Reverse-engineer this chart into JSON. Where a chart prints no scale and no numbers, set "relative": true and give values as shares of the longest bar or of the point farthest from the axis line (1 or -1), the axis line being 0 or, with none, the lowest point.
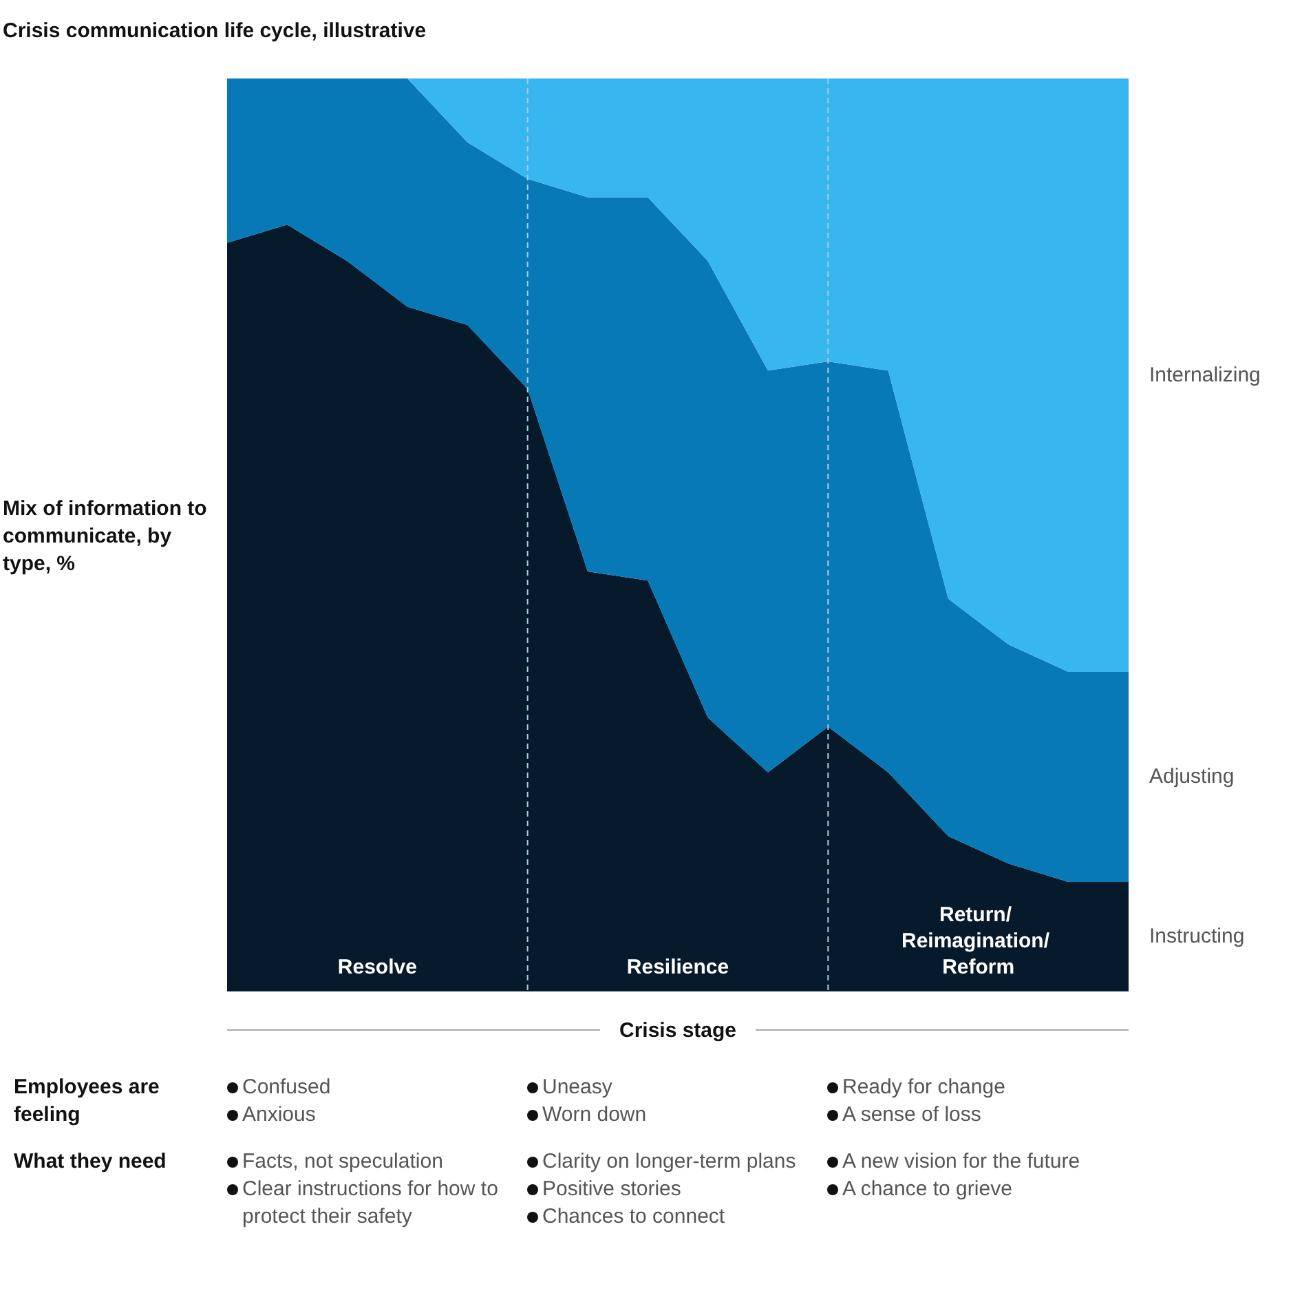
{
  "chart_data": {
    "type": "area",
    "title": "Crisis communication life cycle, illustrative",
    "ylabel": "Mix of information to communicate, by type, %",
    "xlabel": "Crisis stage",
    "relative": true,
    "stacked": true,
    "legend": false,
    "marker": "none",
    "categories": [
      null,
      null,
      null,
      null,
      null,
      null,
      null,
      null,
      null,
      null,
      null,
      null,
      null,
      null,
      null,
      null
    ],
    "series": [
      {
        "name": "Instructing",
        "color": "#061a2b",
        "values": [
          0.82,
          0.84,
          0.8,
          0.75,
          0.73,
          0.66,
          0.46,
          0.45,
          0.3,
          0.24,
          0.29,
          0.24,
          0.17,
          0.14,
          0.12,
          0.12
        ]
      },
      {
        "name": "Adjusting",
        "color": "#0679b6",
        "values": [
          0.18,
          0.16,
          0.2,
          0.25,
          0.2,
          0.23,
          0.41,
          0.42,
          0.5,
          0.44,
          0.4,
          0.44,
          0.26,
          0.24,
          0.23,
          0.23
        ]
      },
      {
        "name": "Internalizing",
        "color": "#38b6ef",
        "values": [
          0,
          0,
          0,
          0,
          0.07,
          0.11,
          0.13,
          0.13,
          0.2,
          0.32,
          0.31,
          0.32,
          0.57,
          0.62,
          0.65,
          0.65
        ]
      }
    ],
    "annotations": [
      "Resolve",
      "Resilience",
      "Return/ Reimagination/ Reform",
      "Employees are feeling",
      "Confused\nAnxious",
      "Uneasy\nWorn down",
      "Ready for change\nA sense of loss",
      "What they need",
      "Facts, not speculation\nClear instructions for how to protect their safety",
      "Clarity on longer-term plans\nPositive stories\nChances to connect",
      "A new vision for the future\nA chance to grieve"
    ]
  }
}
